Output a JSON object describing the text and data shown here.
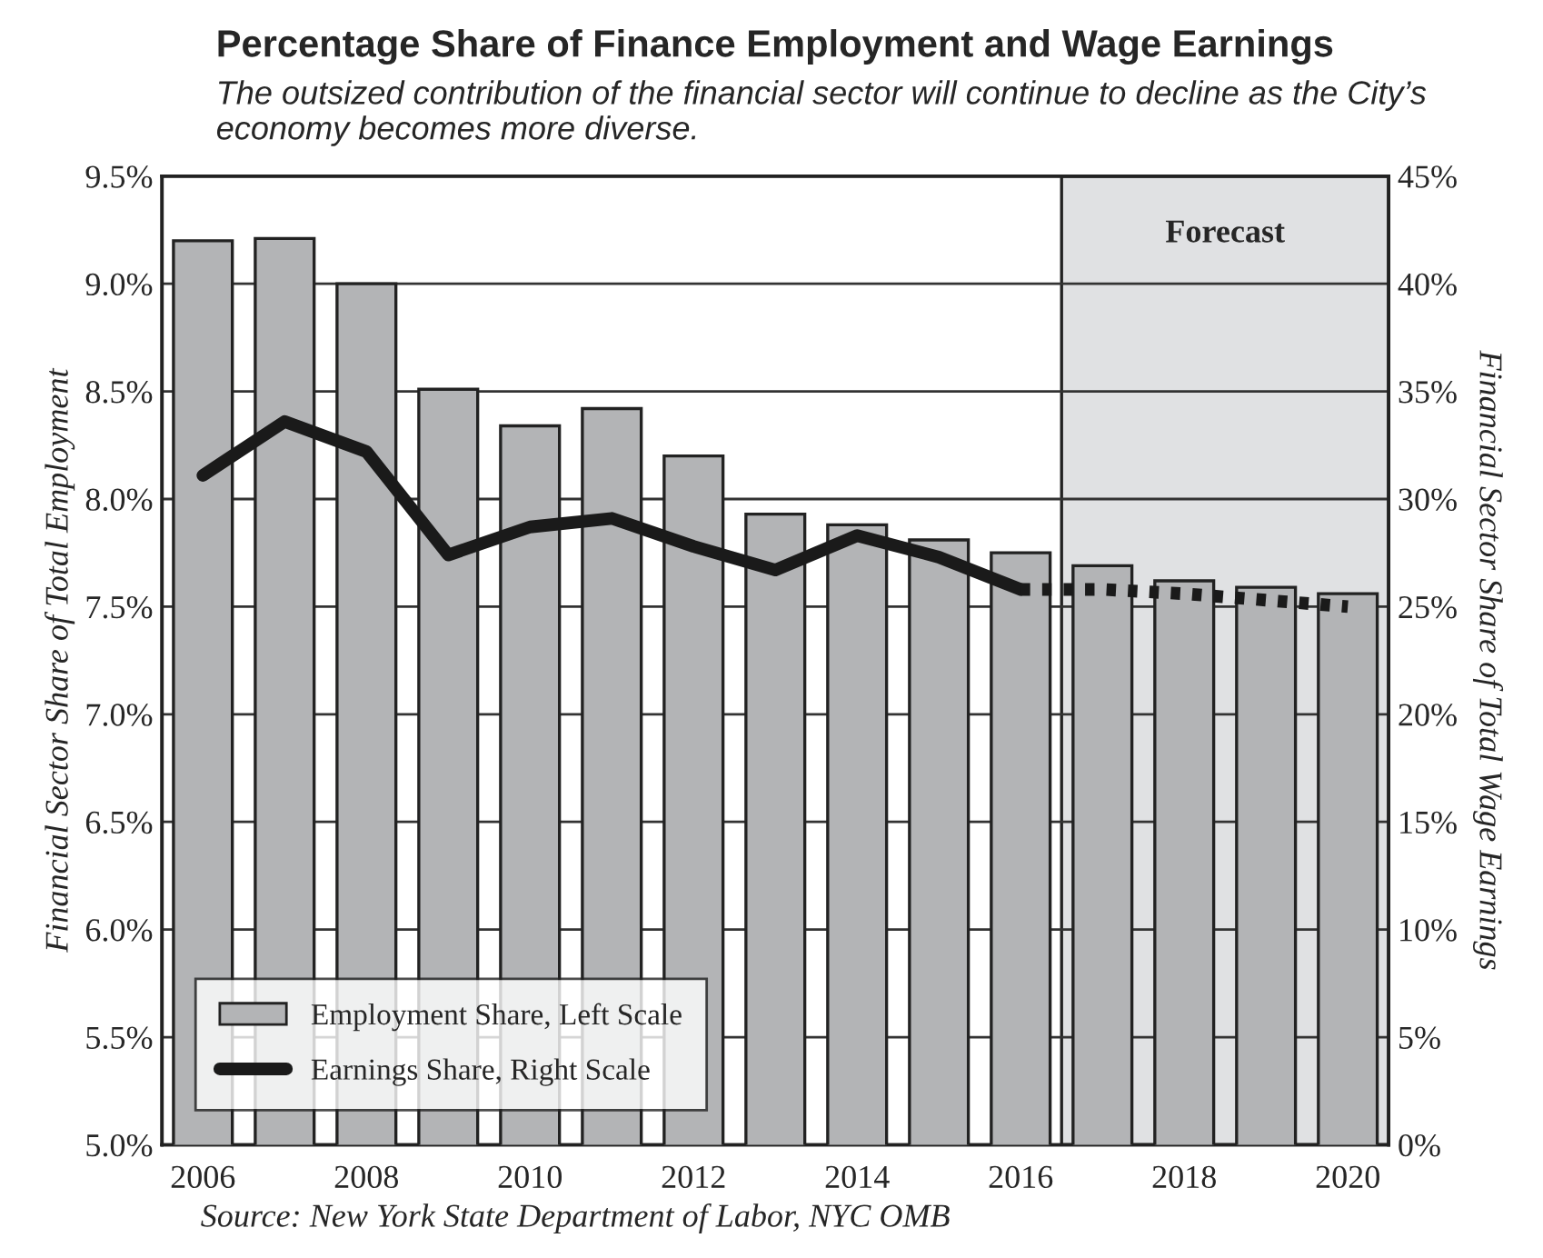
{
  "chart_data": {
    "type": "bar",
    "title": "Percentage Share of Finance Employment and Wage Earnings",
    "subtitle": "The outsized contribution of the financial sector will continue to decline as the City’s economy becomes more diverse.",
    "ylabel": "Financial Sector Share of Total Employment",
    "y2label": "Financial Sector Share of Total Wage Earnings",
    "annotations": [
      "Source: New York State Department of Labor, NYC OMB"
    ],
    "x": [
      2006,
      2007,
      2008,
      2009,
      2010,
      2011,
      2012,
      2013,
      2014,
      2015,
      2016,
      2017,
      2018,
      2019,
      2020
    ],
    "series": [
      {
        "name": "Employment Share, Left Scale",
        "color": "#b3b4b6",
        "values": [
          9.2,
          9.21,
          9.0,
          8.51,
          8.34,
          8.42,
          8.2,
          7.93,
          7.88,
          7.81,
          7.75,
          7.69,
          7.62,
          7.59,
          7.56
        ]
      },
      {
        "name": "Earnings Share, Right Scale",
        "type": "line",
        "axis": "y2",
        "color": "#1a1a1a",
        "line_style": "solid",
        "x": [
          2006,
          2007,
          2008,
          2009,
          2010,
          2011,
          2012,
          2013,
          2014,
          2015,
          2016
        ],
        "values": [
          31.1,
          33.6,
          32.2,
          27.4,
          28.7,
          29.1,
          27.8,
          26.7,
          28.3,
          27.3,
          25.8
        ]
      },
      {
        "type": "line",
        "axis": "y2",
        "color": "#1a1a1a",
        "line_style": "dotted",
        "x": [
          2016,
          2017,
          2018,
          2019,
          2020
        ],
        "values": [
          25.8,
          25.8,
          25.6,
          25.3,
          25.0
        ]
      }
    ],
    "xlim": [
      2005.5,
      2020.5
    ],
    "xticks": [
      2006,
      2008,
      2010,
      2012,
      2014,
      2016,
      2018,
      2020
    ],
    "ylim": [
      5.0,
      9.5
    ],
    "yticks": [
      {
        "value": 5.0,
        "label": "5.0%"
      },
      {
        "value": 5.5,
        "label": "5.5%"
      },
      {
        "value": 6.0,
        "label": "6.0%"
      },
      {
        "value": 6.5,
        "label": "6.5%"
      },
      {
        "value": 7.0,
        "label": "7.0%"
      },
      {
        "value": 7.5,
        "label": "7.5%"
      },
      {
        "value": 8.0,
        "label": "8.0%"
      },
      {
        "value": 8.5,
        "label": "8.5%"
      },
      {
        "value": 9.0,
        "label": "9.0%"
      },
      {
        "value": 9.5,
        "label": "9.5%"
      }
    ],
    "y2lim": [
      0,
      45
    ],
    "y2ticks": [
      {
        "value": 0,
        "label": "0%"
      },
      {
        "value": 5,
        "label": "5%"
      },
      {
        "value": 10,
        "label": "10%"
      },
      {
        "value": 15,
        "label": "15%"
      },
      {
        "value": 20,
        "label": "20%"
      },
      {
        "value": 25,
        "label": "25%"
      },
      {
        "value": 30,
        "label": "30%"
      },
      {
        "value": 35,
        "label": "35%"
      },
      {
        "value": 40,
        "label": "40%"
      },
      {
        "value": 45,
        "label": "45%"
      }
    ],
    "bands": [
      {
        "axis": "x",
        "from": 2016.5,
        "to": 2020.5,
        "label": "Forecast",
        "color": "#e0e1e3"
      }
    ],
    "grid": "y",
    "legend": "bottom left"
  }
}
